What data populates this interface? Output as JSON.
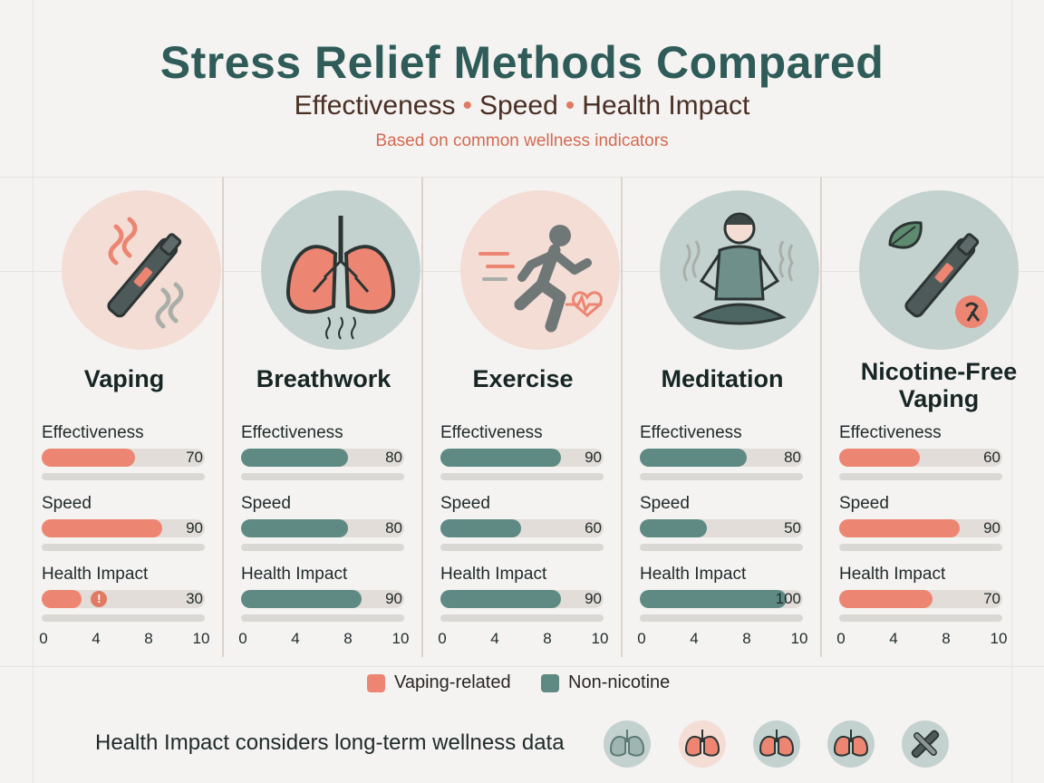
{
  "title": "Stress Relief Methods Compared",
  "subtitle": {
    "part1": "Effectiveness",
    "part2": "Speed",
    "part3": "Health Impact",
    "separator": "•"
  },
  "note": "Based on common wellness indicators",
  "colors": {
    "vaping": "#ec8571",
    "non_nicotine": "#5e8a83",
    "title": "#2f5c59"
  },
  "legend": [
    {
      "label": "Vaping-related",
      "color": "#ec8571"
    },
    {
      "label": "Non-nicotine",
      "color": "#5e8a83"
    }
  ],
  "footer": "Health Impact considers long-term wellness data",
  "methods": [
    {
      "name": "Vaping",
      "icon": "vape-pen-icon"
    },
    {
      "name": "Breathwork",
      "icon": "lungs-icon"
    },
    {
      "name": "Exercise",
      "icon": "running-person-icon"
    },
    {
      "name": "Meditation",
      "icon": "meditation-icon"
    },
    {
      "name": "Nicotine-Free Vaping",
      "icon": "leaf-vape-icon"
    }
  ],
  "metric_labels": [
    "Effectiveness",
    "Speed",
    "Health Impact"
  ],
  "chart_data": {
    "type": "bar",
    "orientation": "horizontal",
    "title": "Stress Relief Methods Compared",
    "categories": [
      "Vaping",
      "Breathwork",
      "Exercise",
      "Meditation",
      "Nicotine-Free Vaping"
    ],
    "series": [
      {
        "name": "Effectiveness",
        "values": [
          70,
          80,
          90,
          80,
          60
        ]
      },
      {
        "name": "Speed",
        "values": [
          90,
          80,
          60,
          50,
          90
        ]
      },
      {
        "name": "Health Impact",
        "values": [
          30,
          90,
          90,
          100,
          70
        ]
      }
    ],
    "value_max": 100,
    "axis_ticks": [
      "0",
      "4",
      "8",
      "10"
    ],
    "groups": [
      "vaping",
      "non_nicotine",
      "non_nicotine",
      "non_nicotine",
      "vaping"
    ],
    "legend_position": "bottom-center",
    "warning_marker": {
      "category": "Vaping",
      "series": "Health Impact",
      "symbol": "!"
    }
  },
  "footer_icons": [
    "lungs-icon",
    "lungs-icon",
    "lungs-icon",
    "lungs-icon",
    "vape-pen-icon"
  ]
}
